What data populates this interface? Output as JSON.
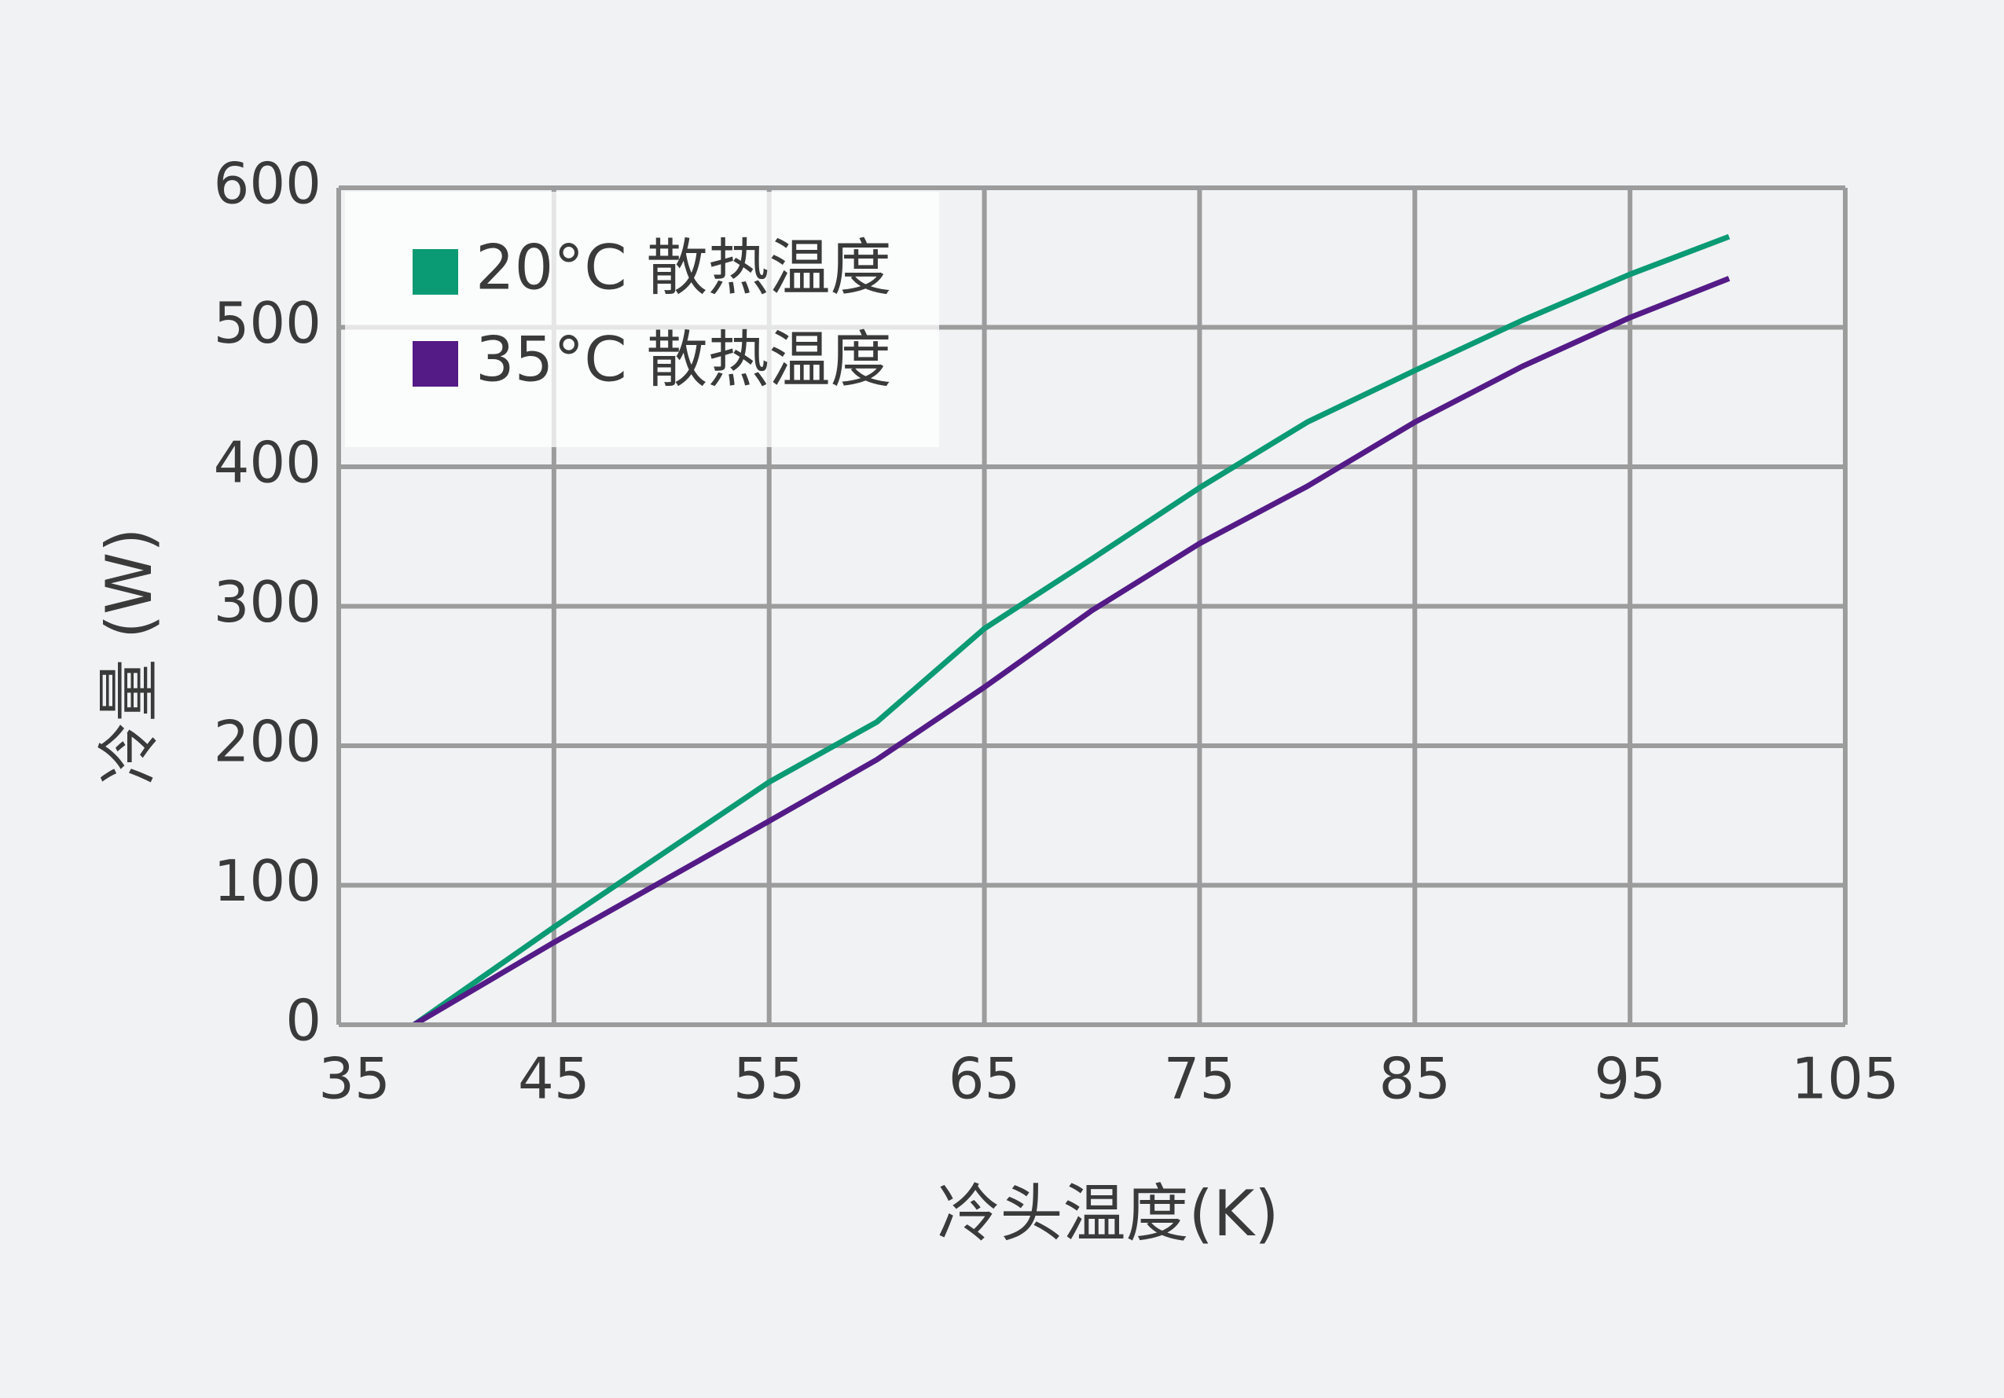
{
  "chart_data": {
    "type": "line",
    "x_label": "冷头温度(K)",
    "y_label": "冷量 (W)",
    "x": [
      38.5,
      45,
      55,
      60,
      65,
      70,
      75,
      80,
      85,
      90,
      95,
      99.6
    ],
    "series": [
      {
        "name": "20°C 散热温度",
        "color": "#0a9a74",
        "values": [
          0,
          70,
          174,
          217,
          284,
          334,
          385,
          432,
          469,
          505,
          538,
          565
        ]
      },
      {
        "name": "35°C 散热温度",
        "color": "#541b87",
        "values": [
          0,
          59,
          146,
          190,
          242,
          297,
          345,
          386,
          432,
          472,
          507,
          535
        ]
      }
    ],
    "xlim": [
      35,
      105
    ],
    "xticks": [
      35,
      45,
      55,
      65,
      75,
      85,
      95,
      105
    ],
    "ylim": [
      0,
      600
    ],
    "yticks": [
      0,
      100,
      200,
      300,
      400,
      500,
      600
    ],
    "grid": true,
    "legend": "upper-left"
  }
}
